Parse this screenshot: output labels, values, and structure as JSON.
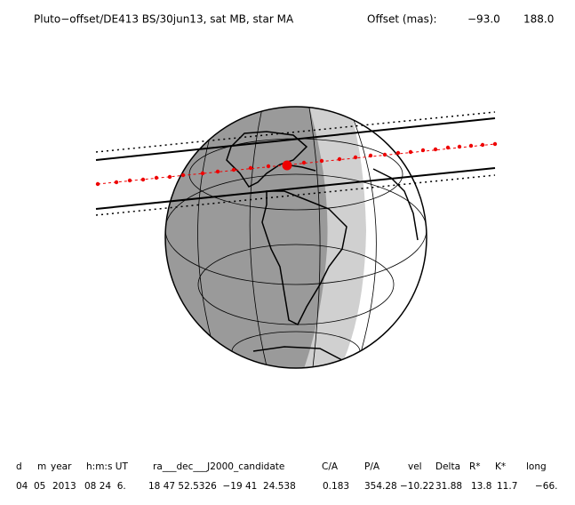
{
  "header": {
    "title": "Pluto−offset/DE413 BS/30jun13, sat MB, star MA",
    "offset_label": "Offset (mas):",
    "offset_x": "−93.0",
    "offset_y": "188.0"
  },
  "table": {
    "columns": [
      "d",
      "m",
      "year",
      "h:m:s UT",
      "ra___dec___J2000_candidate",
      "C/A",
      "P/A",
      "vel",
      "Delta",
      "R*",
      "K*",
      "long"
    ],
    "rows": [
      [
        "04",
        "05",
        "2013",
        "08 24  6.",
        "18 47 52.5326  −19 41  24.538",
        "0.183",
        "354.28",
        "−10.22",
        "31.88",
        "13.8",
        "11.7",
        "−66."
      ]
    ]
  }
}
